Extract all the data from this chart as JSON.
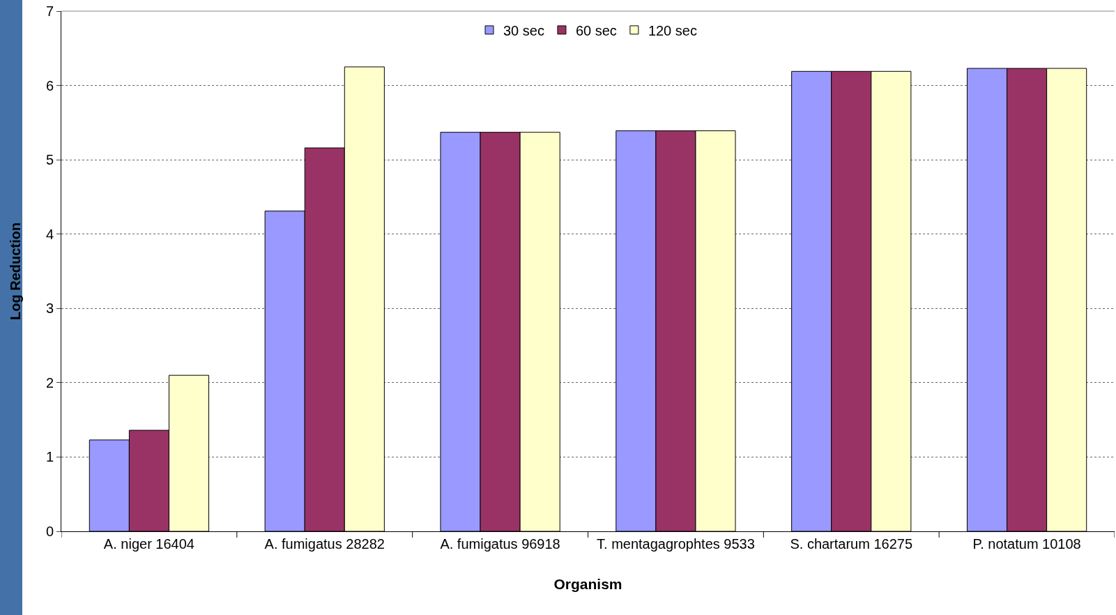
{
  "chart_data": {
    "type": "bar",
    "xlabel": "Organism",
    "ylabel": "Log Reduction",
    "categories": [
      "A. niger 16404",
      "A. fumigatus 28282",
      "A. fumigatus 96918",
      "T. mentagagrophtes 9533",
      "S. chartarum 16275",
      "P. notatum 10108"
    ],
    "series": [
      {
        "name": "30 sec",
        "color": "#9999ff",
        "values": [
          1.23,
          4.31,
          5.37,
          5.39,
          6.19,
          6.23
        ]
      },
      {
        "name": "60 sec",
        "color": "#993366",
        "values": [
          1.36,
          5.16,
          5.37,
          5.39,
          6.19,
          6.23
        ]
      },
      {
        "name": "120 sec",
        "color": "#ffffcc",
        "values": [
          2.1,
          6.25,
          5.37,
          5.39,
          6.19,
          6.23
        ]
      }
    ],
    "ylim": [
      0,
      7
    ],
    "yticks": [
      0,
      1,
      2,
      3,
      4,
      5,
      6,
      7
    ],
    "grid": "y",
    "legend": "top"
  }
}
